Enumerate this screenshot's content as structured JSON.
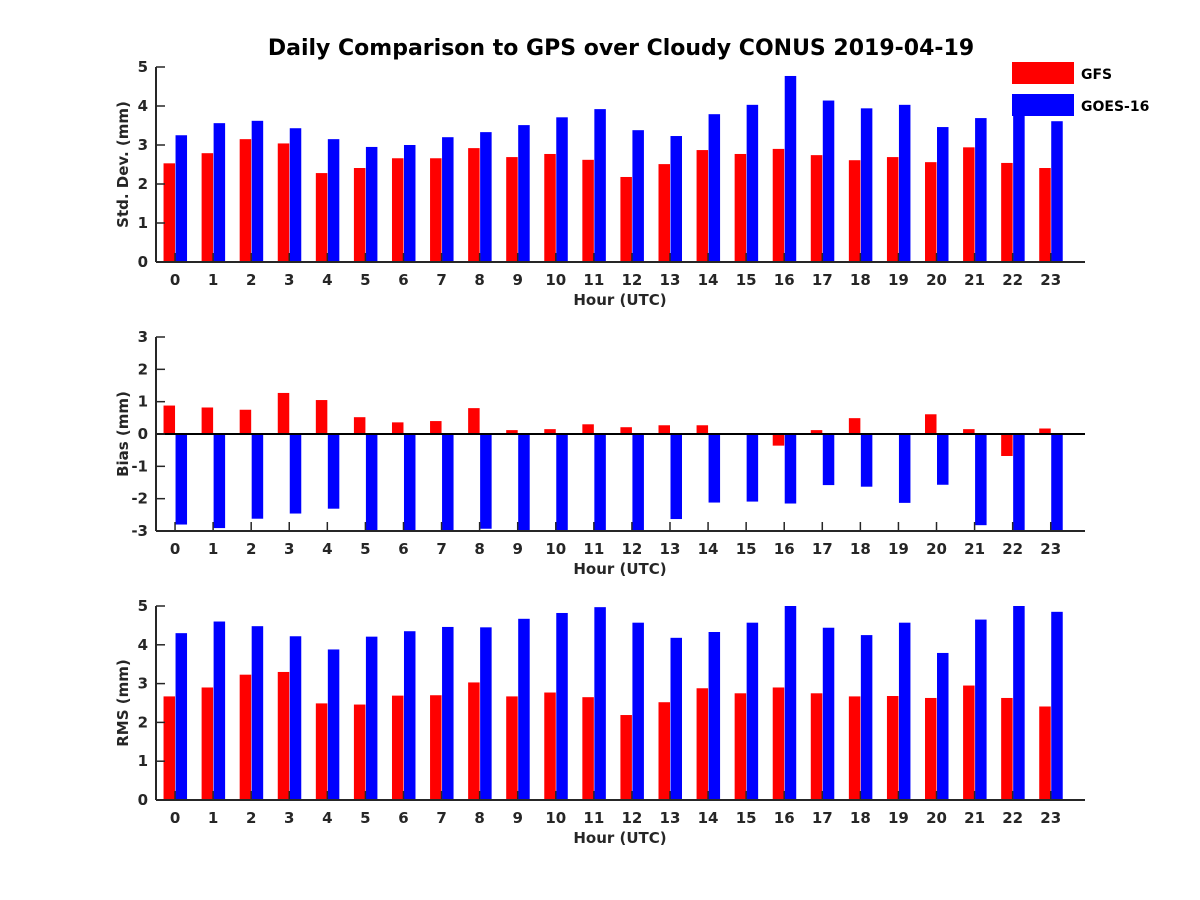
{
  "figure": {
    "title": "Daily Comparison to GPS over Cloudy CONUS 2019-04-19"
  },
  "legend": {
    "placement": "top-right",
    "items": [
      {
        "label": "GFS",
        "color": "#ff0000"
      },
      {
        "label": "GOES-16",
        "color": "#0000ff"
      }
    ]
  },
  "chart_data": [
    {
      "type": "bar",
      "xlabel": "Hour (UTC)",
      "ylabel": "Std. Dev. (mm)",
      "ylim": [
        0,
        5
      ],
      "yticks": [
        0,
        1,
        2,
        3,
        4,
        5
      ],
      "categories": [
        "0",
        "1",
        "2",
        "3",
        "4",
        "5",
        "6",
        "7",
        "8",
        "9",
        "10",
        "11",
        "12",
        "13",
        "14",
        "15",
        "16",
        "17",
        "18",
        "19",
        "20",
        "21",
        "22",
        "23"
      ],
      "series": [
        {
          "name": "GFS",
          "color": "#ff0000",
          "values": [
            2.53,
            2.79,
            3.15,
            3.04,
            2.28,
            2.41,
            2.66,
            2.66,
            2.92,
            2.69,
            2.77,
            2.62,
            2.18,
            2.51,
            2.87,
            2.77,
            2.9,
            2.74,
            2.61,
            2.69,
            2.56,
            2.94,
            2.54,
            2.41
          ]
        },
        {
          "name": "GOES-16",
          "color": "#0000ff",
          "values": [
            3.25,
            3.56,
            3.62,
            3.43,
            3.15,
            2.95,
            3.0,
            3.2,
            3.33,
            3.51,
            3.71,
            3.92,
            3.38,
            3.23,
            3.79,
            4.03,
            4.77,
            4.14,
            3.94,
            4.03,
            3.46,
            3.69,
            3.79,
            3.61
          ]
        }
      ]
    },
    {
      "type": "bar",
      "xlabel": "Hour (UTC)",
      "ylabel": "Bias (mm)",
      "ylim": [
        -3,
        3
      ],
      "yticks": [
        -3,
        -2,
        -1,
        0,
        1,
        2,
        3
      ],
      "zero_line": true,
      "categories": [
        "0",
        "1",
        "2",
        "3",
        "4",
        "5",
        "6",
        "7",
        "8",
        "9",
        "10",
        "11",
        "12",
        "13",
        "14",
        "15",
        "16",
        "17",
        "18",
        "19",
        "20",
        "21",
        "22",
        "23"
      ],
      "series": [
        {
          "name": "GFS",
          "color": "#ff0000",
          "values": [
            0.88,
            0.82,
            0.75,
            1.27,
            1.05,
            0.52,
            0.36,
            0.4,
            0.8,
            0.12,
            0.15,
            0.3,
            0.21,
            0.27,
            0.27,
            -0.03,
            -0.36,
            0.12,
            0.49,
            -0.02,
            0.61,
            0.15,
            -0.68,
            0.17
          ]
        },
        {
          "name": "GOES-16",
          "color": "#0000ff",
          "values": [
            -2.8,
            -2.91,
            -2.62,
            -2.46,
            -2.31,
            -2.99,
            -3.0,
            -3.0,
            -2.93,
            -3.0,
            -3.0,
            -3.0,
            -3.0,
            -2.63,
            -2.12,
            -2.09,
            -2.15,
            -1.58,
            -1.63,
            -2.13,
            -1.57,
            -2.82,
            -3.0,
            -3.0
          ]
        }
      ]
    },
    {
      "type": "bar",
      "xlabel": "Hour (UTC)",
      "ylabel": "RMS (mm)",
      "ylim": [
        0,
        5
      ],
      "yticks": [
        0,
        1,
        2,
        3,
        4,
        5
      ],
      "categories": [
        "0",
        "1",
        "2",
        "3",
        "4",
        "5",
        "6",
        "7",
        "8",
        "9",
        "10",
        "11",
        "12",
        "13",
        "14",
        "15",
        "16",
        "17",
        "18",
        "19",
        "20",
        "21",
        "22",
        "23"
      ],
      "series": [
        {
          "name": "GFS",
          "color": "#ff0000",
          "values": [
            2.67,
            2.9,
            3.23,
            3.3,
            2.49,
            2.46,
            2.69,
            2.7,
            3.03,
            2.67,
            2.77,
            2.65,
            2.19,
            2.52,
            2.88,
            2.75,
            2.9,
            2.75,
            2.67,
            2.68,
            2.63,
            2.95,
            2.63,
            2.41
          ]
        },
        {
          "name": "GOES-16",
          "color": "#0000ff",
          "values": [
            4.3,
            4.6,
            4.48,
            4.22,
            3.88,
            4.21,
            4.35,
            4.46,
            4.45,
            4.67,
            4.82,
            4.97,
            4.57,
            4.18,
            4.33,
            4.57,
            5.0,
            4.44,
            4.25,
            4.57,
            3.79,
            4.65,
            5.0,
            4.85
          ]
        }
      ]
    }
  ]
}
